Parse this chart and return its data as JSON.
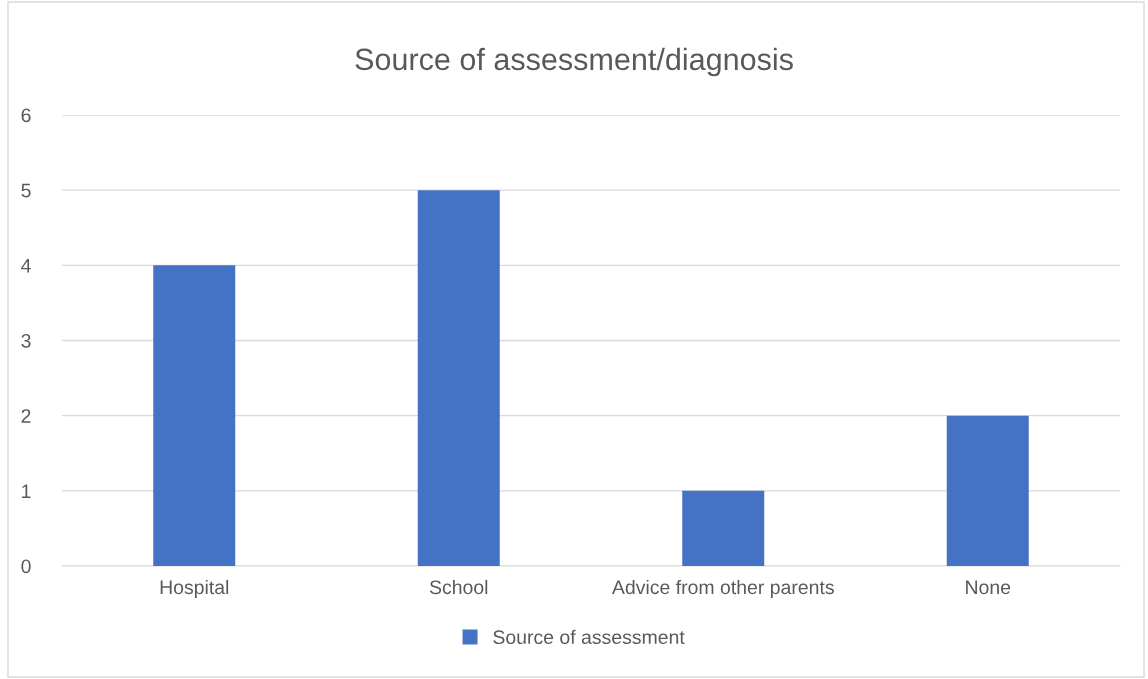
{
  "chart_data": {
    "type": "bar",
    "title": "Source of assessment/diagnosis",
    "categories": [
      "Hospital",
      "School",
      "Advice from other parents",
      "None"
    ],
    "series": [
      {
        "name": "Source of assessment",
        "color": "#4472c4",
        "values": [
          4,
          5,
          1,
          2
        ]
      }
    ],
    "ylim": [
      0,
      6
    ],
    "yticks": [
      0,
      1,
      2,
      3,
      4,
      5,
      6
    ],
    "grid": "y",
    "legend": "bottom"
  }
}
